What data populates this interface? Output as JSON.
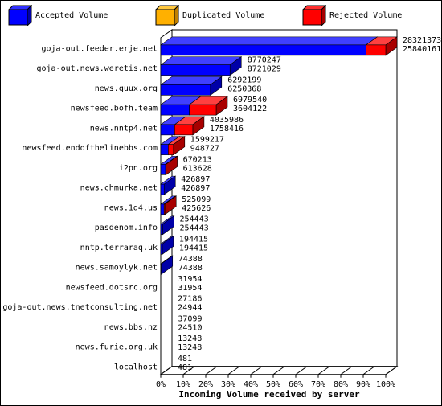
{
  "chart_data": {
    "type": "bar",
    "orientation": "horizontal",
    "stacked": true,
    "xlabel": "Incoming Volume received by server",
    "xlim": [
      0,
      100
    ],
    "x_ticks": [
      "0%",
      "10%",
      "20%",
      "30%",
      "40%",
      "50%",
      "60%",
      "70%",
      "80%",
      "90%",
      "100%"
    ],
    "legend_position": "top",
    "series": [
      {
        "name": "Accepted Volume",
        "color": "#0000ff",
        "side": "#0000a8"
      },
      {
        "name": "Duplicated Volume",
        "color": "#ffb000",
        "side": "#c08000"
      },
      {
        "name": "Rejected Volume",
        "color": "#ff0000",
        "side": "#a80000"
      }
    ],
    "max_volume": 28321373,
    "rows": [
      {
        "server": "goja-out.feeder.erje.net",
        "received": "28321373",
        "accepted": "25840161",
        "rec": 28321373,
        "acc": 25840161,
        "dup": 0
      },
      {
        "server": "goja-out.news.weretis.net",
        "received": "8770247",
        "accepted": "8721029",
        "rec": 8770247,
        "acc": 8721029,
        "dup": 0
      },
      {
        "server": "news.quux.org",
        "received": "6292199",
        "accepted": "6250368",
        "rec": 6292199,
        "acc": 6250368,
        "dup": 0
      },
      {
        "server": "newsfeed.bofh.team",
        "received": "6979540",
        "accepted": "3604122",
        "rec": 6979540,
        "acc": 3604122,
        "dup": 0
      },
      {
        "server": "news.nntp4.net",
        "received": "4035986",
        "accepted": "1758416",
        "rec": 4035986,
        "acc": 1758416,
        "dup": 0
      },
      {
        "server": "newsfeed.endofthelinebbs.com",
        "received": "1599217",
        "accepted": "948727",
        "rec": 1599217,
        "acc": 948727,
        "dup": 0
      },
      {
        "server": "i2pn.org",
        "received": "670213",
        "accepted": "613628",
        "rec": 670213,
        "acc": 613628,
        "dup": 0
      },
      {
        "server": "news.chmurka.net",
        "received": "426897",
        "accepted": "426897",
        "rec": 426897,
        "acc": 426897,
        "dup": 0
      },
      {
        "server": "news.1d4.us",
        "received": "525099",
        "accepted": "425626",
        "rec": 525099,
        "acc": 425626,
        "dup": 0
      },
      {
        "server": "pasdenom.info",
        "received": "254443",
        "accepted": "254443",
        "rec": 254443,
        "acc": 254443,
        "dup": 0
      },
      {
        "server": "nntp.terraraq.uk",
        "received": "194415",
        "accepted": "194415",
        "rec": 194415,
        "acc": 194415,
        "dup": 0
      },
      {
        "server": "news.samoylyk.net",
        "received": "74388",
        "accepted": "74388",
        "rec": 74388,
        "acc": 74388,
        "dup": 0
      },
      {
        "server": "newsfeed.dotsrc.org",
        "received": "31954",
        "accepted": "31954",
        "rec": 31954,
        "acc": 31954,
        "dup": 0
      },
      {
        "server": "goja-out.news.tnetconsulting.net",
        "received": "27186",
        "accepted": "24944",
        "rec": 27186,
        "acc": 24944,
        "dup": 0
      },
      {
        "server": "news.bbs.nz",
        "received": "37099",
        "accepted": "24510",
        "rec": 37099,
        "acc": 24510,
        "dup": 0
      },
      {
        "server": "news.furie.org.uk",
        "received": "13248",
        "accepted": "13248",
        "rec": 13248,
        "acc": 13248,
        "dup": 0
      },
      {
        "server": "localhost",
        "received": "481",
        "accepted": "481",
        "rec": 481,
        "acc": 481,
        "dup": 0
      }
    ]
  }
}
